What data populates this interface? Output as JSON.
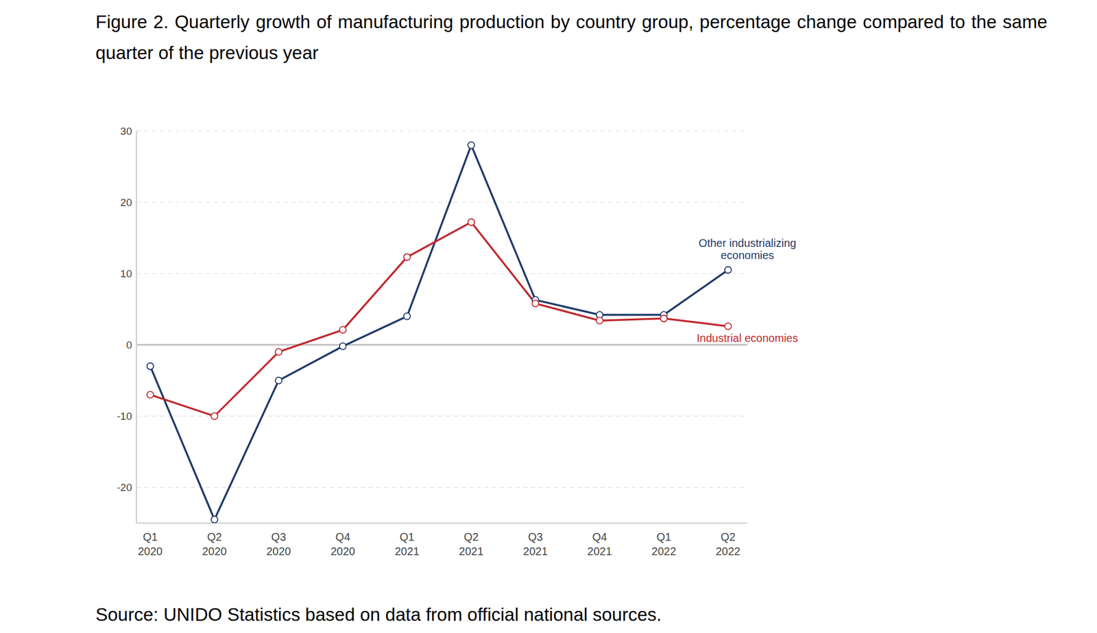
{
  "chart_data": {
    "type": "line",
    "title": "Figure 2. Quarterly growth of manufacturing production by country group, percentage change compared to the same quarter of the previous year",
    "source": "Source: UNIDO Statistics based on data from official national sources.",
    "categories": [
      "Q1 2020",
      "Q2 2020",
      "Q3 2020",
      "Q4 2020",
      "Q1 2021",
      "Q2 2021",
      "Q3 2021",
      "Q4 2021",
      "Q1 2022",
      "Q2 2022"
    ],
    "series": [
      {
        "name": "Other industrializing economies",
        "color": "#1f3a68",
        "values": [
          -3,
          -24.5,
          -5,
          -0.2,
          4,
          28,
          6.3,
          4.2,
          4.2,
          10.5
        ]
      },
      {
        "name": "Industrial economies",
        "color": "#c0282d",
        "values": [
          -7,
          -10,
          -1,
          2.1,
          12.3,
          17.2,
          5.8,
          3.4,
          3.7,
          2.6
        ]
      }
    ],
    "ylim": [
      -25,
      30
    ],
    "yticks": [
      -20,
      -10,
      0,
      10,
      20,
      30
    ],
    "grid": true,
    "marker": "circle"
  }
}
